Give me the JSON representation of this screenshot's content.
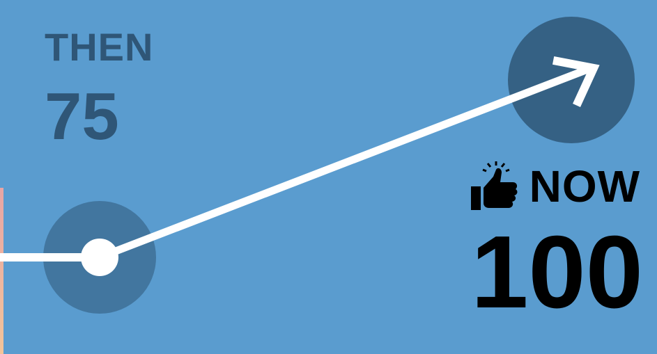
{
  "then": {
    "label": "THEN",
    "value": "75"
  },
  "now": {
    "label": "NOW",
    "value": "100",
    "icon": "thumbs-up-icon"
  },
  "colors": {
    "background": "#5a9ccf",
    "then_text": "#2f5677",
    "now_text": "#000000",
    "start_circle": "#42769f",
    "end_circle": "#356184",
    "arrow": "#ffffff"
  }
}
